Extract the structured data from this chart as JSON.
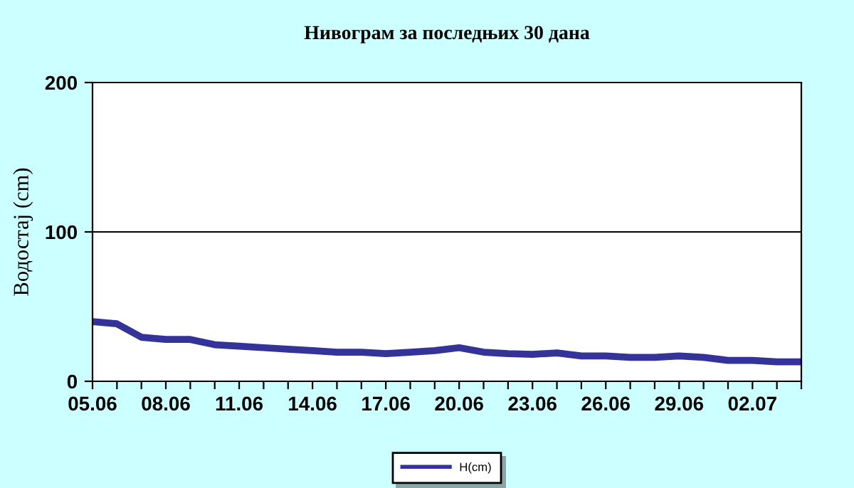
{
  "chart_data": {
    "type": "line",
    "title": "Нивограм за последњих 30 дана",
    "ylabel": "Водостај (cm)",
    "categories": [
      "05.06",
      null,
      null,
      "08.06",
      null,
      null,
      "11.06",
      null,
      null,
      "14.06",
      null,
      null,
      "17.06",
      null,
      null,
      "20.06",
      null,
      null,
      "23.06",
      null,
      null,
      "26.06",
      null,
      null,
      "29.06",
      null,
      null,
      "02.07",
      null,
      null
    ],
    "series": [
      {
        "name": "H(cm)",
        "color": "#333399",
        "values": [
          40,
          38.5,
          29.5,
          28,
          28,
          24.5,
          23.5,
          22.5,
          21.5,
          20.5,
          19.5,
          19.5,
          18.5,
          19.5,
          20.5,
          22.5,
          19.5,
          18.5,
          18,
          19,
          17,
          17,
          16,
          16,
          17,
          16,
          14,
          14,
          13,
          13
        ]
      }
    ],
    "ylim": [
      0,
      200
    ],
    "yticks": [
      0,
      100,
      200
    ],
    "grid": "y",
    "legend": "bottom",
    "marker": "none",
    "line_style": "solid"
  }
}
